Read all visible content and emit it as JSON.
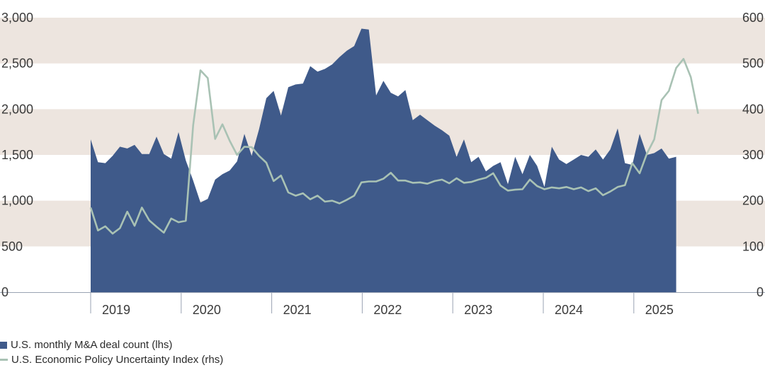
{
  "chart_data": {
    "type": "area",
    "x_start": "2019-01",
    "x_labels": [
      "2019",
      "2020",
      "2021",
      "2022",
      "2023",
      "2024",
      "2025"
    ],
    "y_left": {
      "ticks": [
        "0",
        "500",
        "1,000",
        "1,500",
        "2,000",
        "2,500",
        "3,000"
      ],
      "range": [
        0,
        3000
      ]
    },
    "y_right": {
      "ticks": [
        "0",
        "100",
        "200",
        "300",
        "400",
        "500",
        "600"
      ],
      "range": [
        0,
        600
      ]
    },
    "series": [
      {
        "name": "U.S. monthly M&A deal count (lhs)",
        "axis": "left",
        "kind": "area",
        "color": "#3f5a8a",
        "values": [
          1670,
          1420,
          1410,
          1490,
          1590,
          1570,
          1610,
          1510,
          1510,
          1700,
          1510,
          1460,
          1750,
          1440,
          1220,
          980,
          1020,
          1230,
          1290,
          1330,
          1430,
          1730,
          1490,
          1780,
          2120,
          2200,
          1930,
          2240,
          2270,
          2280,
          2470,
          2410,
          2440,
          2490,
          2570,
          2640,
          2690,
          2880,
          2870,
          2150,
          2310,
          2180,
          2140,
          2210,
          1880,
          1940,
          1880,
          1820,
          1770,
          1710,
          1480,
          1670,
          1420,
          1480,
          1320,
          1380,
          1420,
          1180,
          1480,
          1290,
          1500,
          1380,
          1150,
          1590,
          1450,
          1400,
          1450,
          1500,
          1480,
          1560,
          1450,
          1560,
          1790,
          1410,
          1390,
          1730,
          1500,
          1520,
          1570,
          1460,
          1480
        ]
      },
      {
        "name": "U.S. Economic Policy Uncertainty Index (rhs)",
        "axis": "right",
        "kind": "line",
        "color": "#a9c2b4",
        "values": [
          185,
          135,
          144,
          128,
          140,
          176,
          145,
          185,
          157,
          143,
          130,
          161,
          153,
          156,
          365,
          485,
          468,
          335,
          367,
          331,
          300,
          318,
          317,
          298,
          283,
          243,
          255,
          218,
          211,
          216,
          203,
          211,
          198,
          200,
          194,
          202,
          211,
          240,
          242,
          242,
          248,
          261,
          244,
          244,
          239,
          240,
          237,
          243,
          246,
          238,
          249,
          239,
          241,
          246,
          250,
          260,
          233,
          222,
          224,
          225,
          246,
          232,
          225,
          229,
          227,
          230,
          225,
          229,
          221,
          227,
          212,
          220,
          230,
          234,
          282,
          260,
          303,
          334,
          420,
          440,
          490,
          510,
          470,
          390
        ]
      }
    ],
    "bands": [
      [
        500,
        1000
      ],
      [
        1500,
        2000
      ],
      [
        2500,
        3000
      ]
    ],
    "band_color": "#ede5df"
  },
  "legend": {
    "items": [
      {
        "label": "U.S. monthly M&A deal count (lhs)",
        "color": "#3f5a8a"
      },
      {
        "label": "U.S. Economic Policy Uncertainty Index (rhs)",
        "color": "#a9c2b4"
      }
    ]
  }
}
